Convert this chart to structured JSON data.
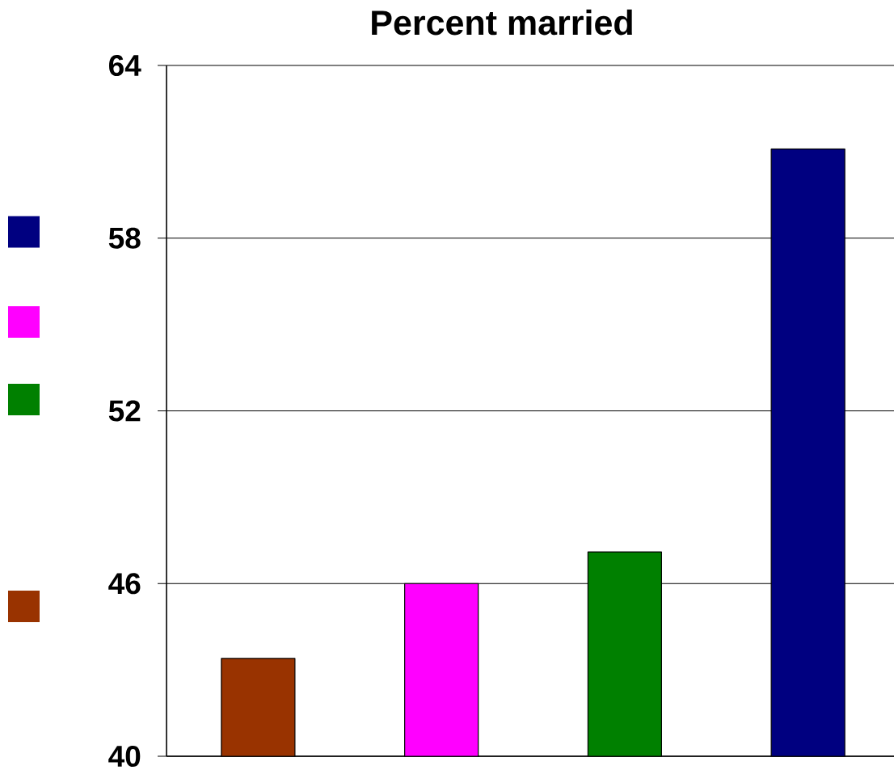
{
  "chart_data": {
    "type": "bar",
    "title": "Percent married",
    "categories": [
      null,
      null,
      null,
      null
    ],
    "values": [
      43.4,
      46.0,
      47.1,
      61.1
    ],
    "colors": [
      "#993300",
      "#ff00ff",
      "#008000",
      "#000080"
    ],
    "ylim": [
      40,
      64
    ],
    "yticks": [
      40,
      46,
      52,
      58,
      64
    ],
    "grid": "y"
  }
}
